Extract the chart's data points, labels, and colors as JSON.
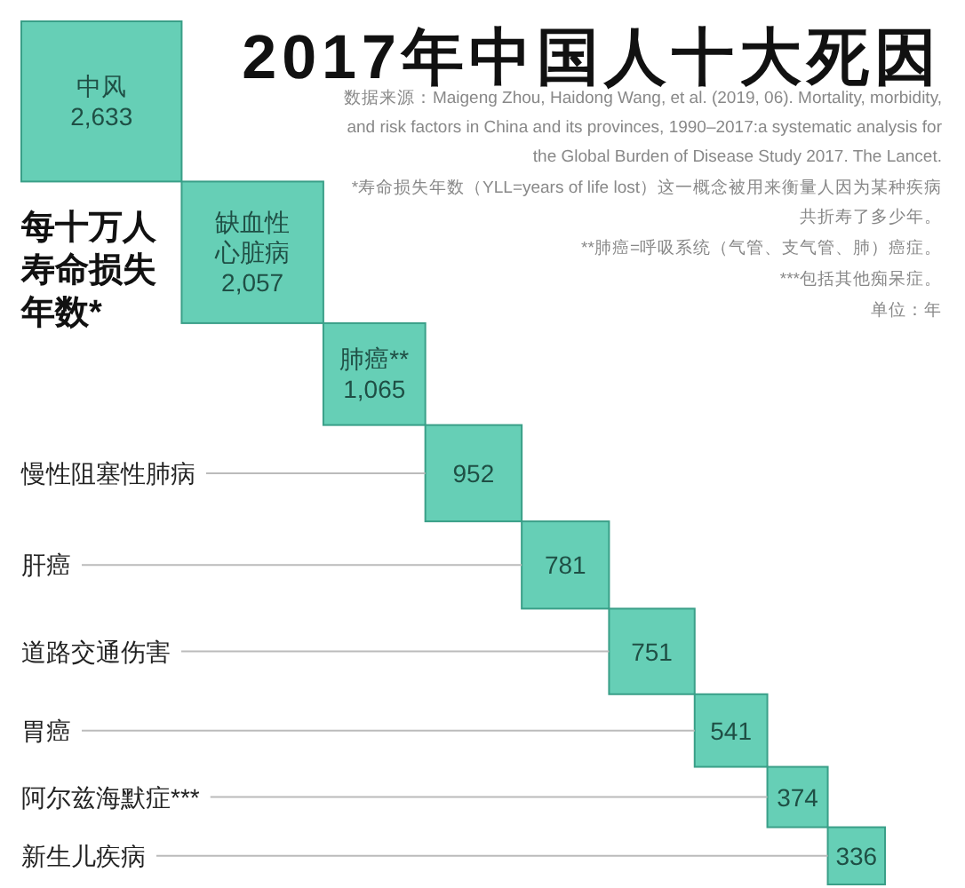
{
  "chart_data": {
    "type": "other",
    "title": "2017年中国人十大死因",
    "ylabel": "每十万人寿命损失年数*",
    "categories": [
      "中风",
      "缺血性心脏病",
      "肺癌**",
      "慢性阻塞性肺病",
      "肝癌",
      "道路交通伤害",
      "胃癌",
      "阿尔兹海默症***",
      "新生儿疾病"
    ],
    "values": [
      2633,
      2057,
      1065,
      952,
      781,
      751,
      541,
      374,
      336
    ],
    "value_labels": [
      "2,633",
      "2,057",
      "1,065",
      "952",
      "781",
      "751",
      "541",
      "374",
      "336"
    ],
    "color": "#66cfb6",
    "annotations": [
      "数据来源：Maigeng Zhou, Haidong Wang, et al. (2019, 06). Mortality, morbidity, and risk factors in China and its provinces, 1990–2017:a systematic analysis for the Global Burden of Disease Study 2017. The Lancet.",
      "*寿命损失年数（YLL=years of life lost）这一概念被用来衡量人因为某种疾病共折寿了多少年。",
      "**肺癌=呼吸系统（气管、支气管、肺）癌症。",
      "***包括其他痴呆症。",
      "单位：年"
    ]
  }
}
